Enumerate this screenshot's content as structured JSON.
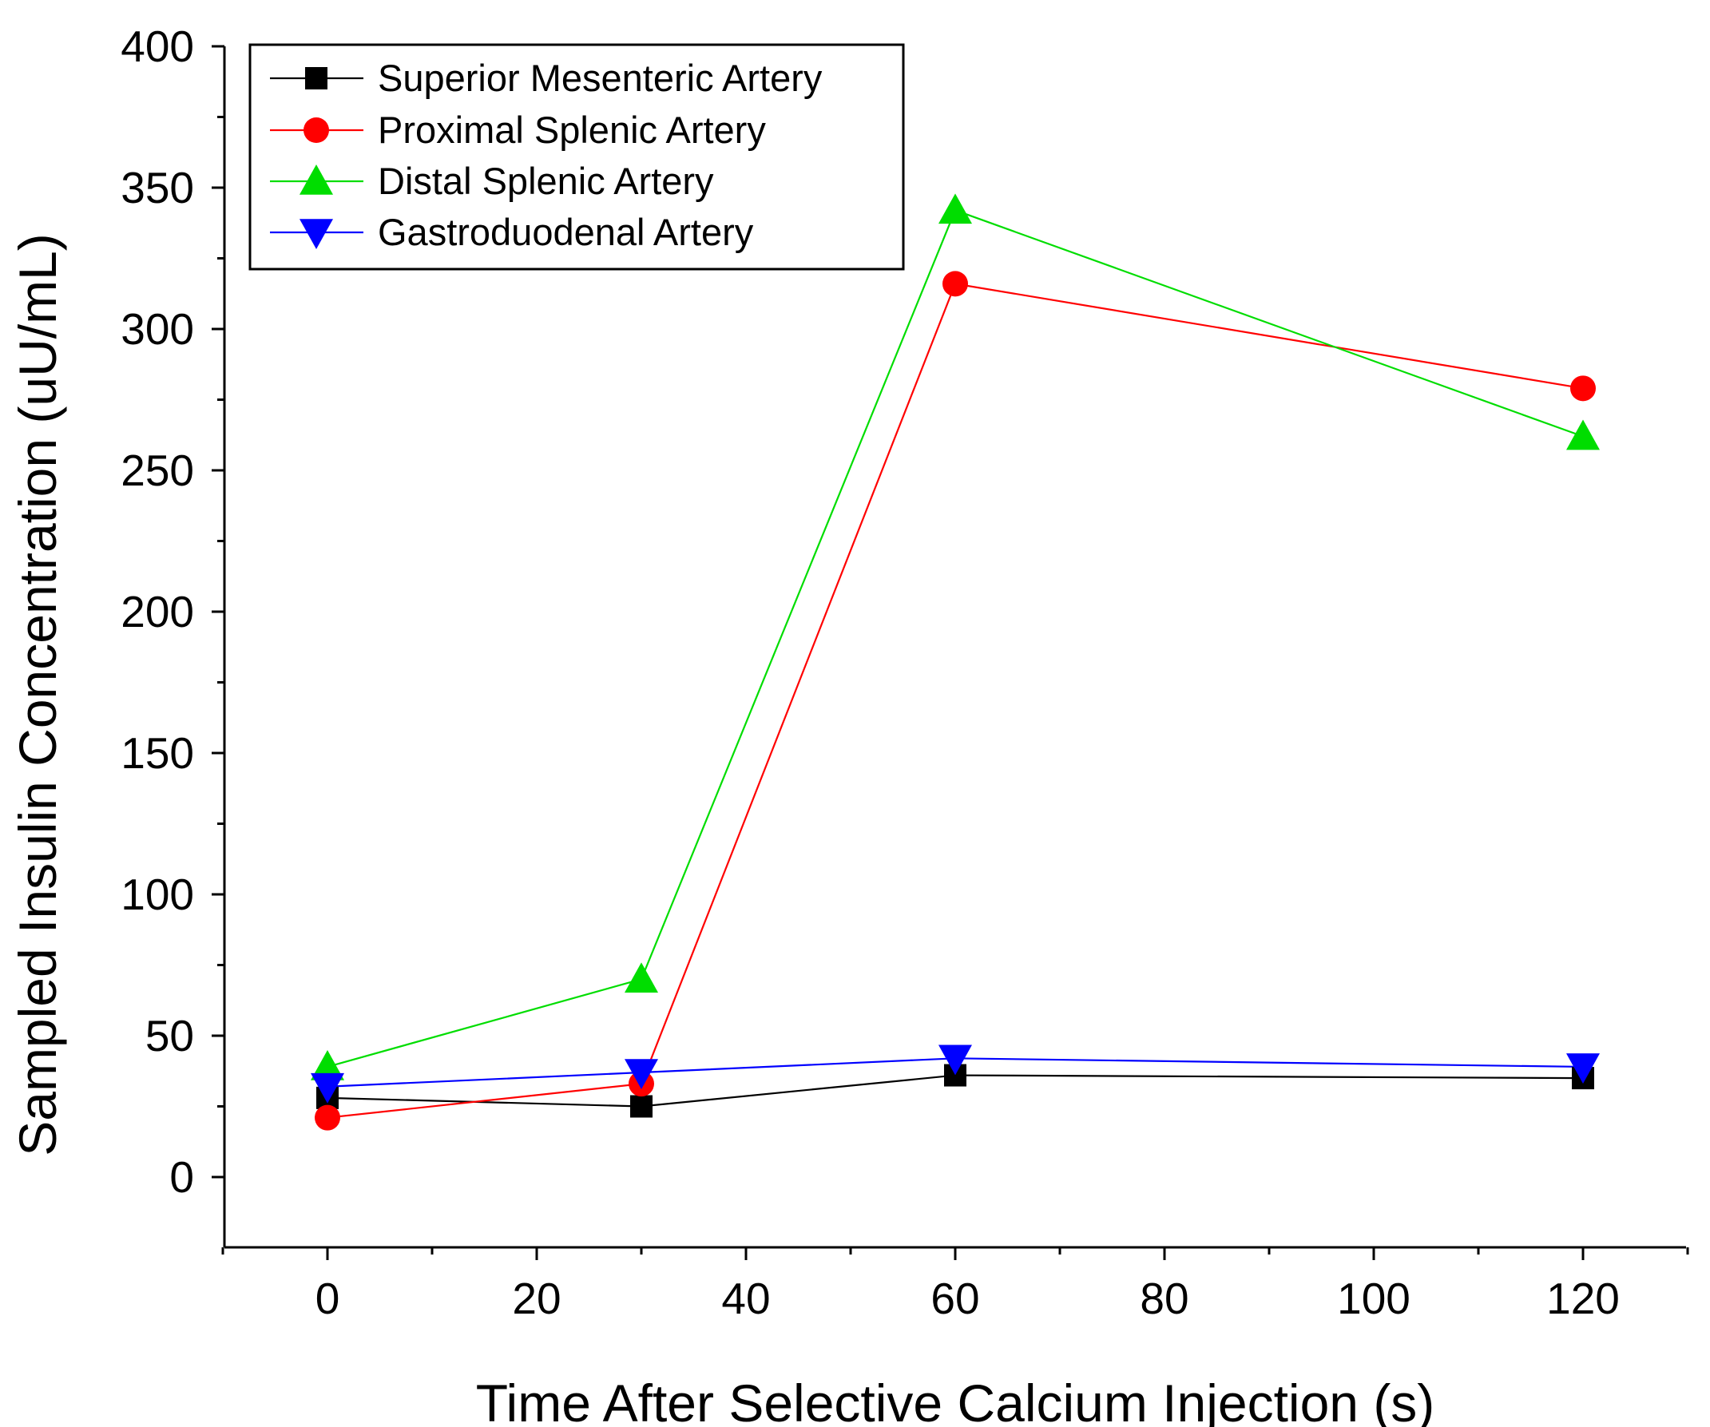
{
  "chart_data": {
    "type": "line",
    "title": "",
    "xlabel": "Time After Selective Calcium Injection (s)",
    "ylabel": "Sampled Insulin Concentration (uU/mL)",
    "xlim": [
      -10,
      130
    ],
    "ylim": [
      -25,
      400
    ],
    "x_ticks": [
      0,
      20,
      40,
      60,
      80,
      100,
      120
    ],
    "y_ticks": [
      0,
      50,
      100,
      150,
      200,
      250,
      300,
      350,
      400
    ],
    "x_tick_labels": [
      "0",
      "20",
      "40",
      "60",
      "80",
      "100",
      "120"
    ],
    "y_tick_labels": [
      "0",
      "50",
      "100",
      "150",
      "200",
      "250",
      "300",
      "350",
      "400"
    ],
    "grid": false,
    "legend_position": "top-left",
    "x": [
      0,
      30,
      60,
      120
    ],
    "series": [
      {
        "name": "Superior Mesenteric Artery",
        "values": [
          28,
          25,
          36,
          35
        ],
        "color": "#000000",
        "marker": "square"
      },
      {
        "name": "Proximal Splenic Artery",
        "values": [
          21,
          33,
          316,
          279
        ],
        "color": "#ff0000",
        "marker": "circle"
      },
      {
        "name": "Distal Splenic Artery",
        "values": [
          39,
          70,
          342,
          262
        ],
        "color": "#00dd00",
        "marker": "triangle-up"
      },
      {
        "name": "Gastroduodenal Artery",
        "values": [
          32,
          37,
          42,
          39
        ],
        "color": "#0000ff",
        "marker": "triangle-down"
      }
    ]
  }
}
